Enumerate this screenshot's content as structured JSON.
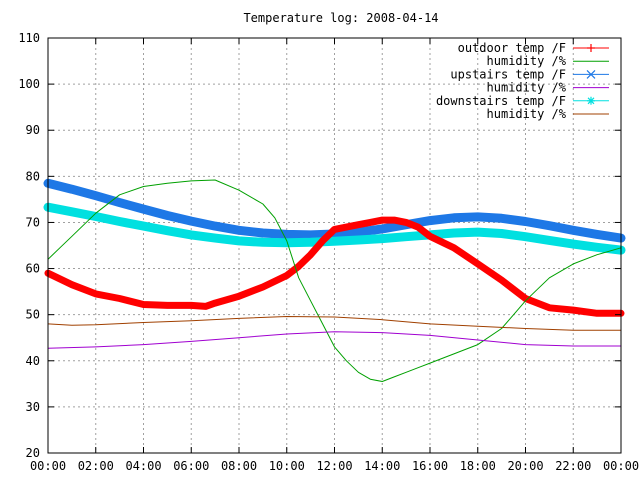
{
  "chart_data": {
    "type": "line",
    "title": "Temperature log: 2008-04-14",
    "xlabel": "",
    "ylabel": "",
    "xlim": [
      0,
      24
    ],
    "ylim": [
      20,
      110
    ],
    "grid": true,
    "legend_position": "top-right",
    "x_ticks": [
      "00:00",
      "02:00",
      "04:00",
      "06:00",
      "08:00",
      "10:00",
      "12:00",
      "14:00",
      "16:00",
      "18:00",
      "20:00",
      "22:00",
      "00:00"
    ],
    "y_ticks": [
      "20",
      "30",
      "40",
      "50",
      "60",
      "70",
      "80",
      "90",
      "100",
      "110"
    ],
    "series": [
      {
        "name": "outdoor temp /F",
        "color": "#ff0000",
        "marker": "plus",
        "points": [
          [
            0,
            59
          ],
          [
            1,
            56.5
          ],
          [
            2,
            54.5
          ],
          [
            3,
            53.5
          ],
          [
            4,
            52.2
          ],
          [
            5,
            52
          ],
          [
            6,
            52
          ],
          [
            6.6,
            51.8
          ],
          [
            7,
            52.5
          ],
          [
            8,
            54
          ],
          [
            9,
            56
          ],
          [
            10,
            58.5
          ],
          [
            10.5,
            60.5
          ],
          [
            11,
            63
          ],
          [
            11.5,
            66
          ],
          [
            12,
            68.5
          ],
          [
            12.5,
            69
          ],
          [
            13,
            69.5
          ],
          [
            13.5,
            70
          ],
          [
            14,
            70.5
          ],
          [
            14.5,
            70.5
          ],
          [
            15,
            70
          ],
          [
            15.5,
            69
          ],
          [
            16,
            67
          ],
          [
            17,
            64.5
          ],
          [
            18,
            61
          ],
          [
            19,
            57.5
          ],
          [
            20,
            53.5
          ],
          [
            21,
            51.5
          ],
          [
            22,
            51
          ],
          [
            23,
            50.3
          ],
          [
            24,
            50.3
          ]
        ]
      },
      {
        "name": "humidity /%",
        "color": "#00a000",
        "marker": "none",
        "points": [
          [
            0,
            62
          ],
          [
            0.5,
            64.5
          ],
          [
            1,
            67
          ],
          [
            2,
            72
          ],
          [
            3,
            76
          ],
          [
            4,
            77.8
          ],
          [
            5,
            78.5
          ],
          [
            6,
            79
          ],
          [
            7,
            79.2
          ],
          [
            8,
            77
          ],
          [
            9,
            74
          ],
          [
            9.5,
            71
          ],
          [
            10,
            66
          ],
          [
            10.5,
            58
          ],
          [
            11,
            53
          ],
          [
            11.5,
            48
          ],
          [
            12,
            43
          ],
          [
            12.5,
            40
          ],
          [
            13,
            37.5
          ],
          [
            13.5,
            36
          ],
          [
            14,
            35.5
          ],
          [
            14.5,
            36.5
          ],
          [
            15,
            37.5
          ],
          [
            15.5,
            38.5
          ],
          [
            16,
            39.5
          ],
          [
            16.5,
            40.5
          ],
          [
            17,
            41.5
          ],
          [
            18,
            43.5
          ],
          [
            19,
            47
          ],
          [
            19.5,
            50
          ],
          [
            20,
            53
          ],
          [
            20.5,
            55.5
          ],
          [
            21,
            58
          ],
          [
            22,
            61
          ],
          [
            23,
            63
          ],
          [
            24,
            64.5
          ]
        ]
      },
      {
        "name": "upstairs temp /F",
        "color": "#1e78e6",
        "marker": "cross",
        "points": [
          [
            0,
            78.5
          ],
          [
            1,
            77.2
          ],
          [
            2,
            75.8
          ],
          [
            3,
            74.3
          ],
          [
            4,
            72.9
          ],
          [
            5,
            71.5
          ],
          [
            6,
            70.3
          ],
          [
            7,
            69.2
          ],
          [
            8,
            68.3
          ],
          [
            9,
            67.7
          ],
          [
            10,
            67.4
          ],
          [
            11,
            67.3
          ],
          [
            12,
            67.5
          ],
          [
            13,
            67.9
          ],
          [
            14,
            68.6
          ],
          [
            15,
            69.5
          ],
          [
            16,
            70.4
          ],
          [
            17,
            71
          ],
          [
            18,
            71.2
          ],
          [
            19,
            70.9
          ],
          [
            20,
            70.2
          ],
          [
            21,
            69.3
          ],
          [
            22,
            68.3
          ],
          [
            23,
            67.4
          ],
          [
            24,
            66.6
          ]
        ]
      },
      {
        "name": "humidity /%",
        "color": "#a000d0",
        "marker": "none",
        "points": [
          [
            0,
            42.7
          ],
          [
            2,
            43
          ],
          [
            4,
            43.5
          ],
          [
            6,
            44.2
          ],
          [
            8,
            45
          ],
          [
            10,
            45.8
          ],
          [
            12,
            46.3
          ],
          [
            14,
            46.1
          ],
          [
            16,
            45.5
          ],
          [
            18,
            44.5
          ],
          [
            20,
            43.5
          ],
          [
            22,
            43.2
          ],
          [
            24,
            43.2
          ]
        ]
      },
      {
        "name": "downstairs temp /F",
        "color": "#00e0e0",
        "marker": "star",
        "points": [
          [
            0,
            73.3
          ],
          [
            1,
            72.3
          ],
          [
            2,
            71.3
          ],
          [
            3,
            70.2
          ],
          [
            4,
            69.2
          ],
          [
            5,
            68.2
          ],
          [
            6,
            67.3
          ],
          [
            7,
            66.6
          ],
          [
            8,
            66
          ],
          [
            9,
            65.7
          ],
          [
            10,
            65.6
          ],
          [
            11,
            65.7
          ],
          [
            12,
            65.9
          ],
          [
            13,
            66.2
          ],
          [
            14,
            66.5
          ],
          [
            15,
            66.9
          ],
          [
            16,
            67.3
          ],
          [
            17,
            67.7
          ],
          [
            18,
            67.9
          ],
          [
            19,
            67.6
          ],
          [
            20,
            66.9
          ],
          [
            21,
            66.1
          ],
          [
            22,
            65.3
          ],
          [
            23,
            64.6
          ],
          [
            24,
            64
          ]
        ]
      },
      {
        "name": "humidity /%",
        "color": "#a04000",
        "marker": "none",
        "points": [
          [
            0,
            48
          ],
          [
            1,
            47.7
          ],
          [
            2,
            47.8
          ],
          [
            4,
            48.3
          ],
          [
            6,
            48.7
          ],
          [
            8,
            49.2
          ],
          [
            10,
            49.6
          ],
          [
            12,
            49.5
          ],
          [
            14,
            48.9
          ],
          [
            16,
            48
          ],
          [
            18,
            47.5
          ],
          [
            20,
            47
          ],
          [
            22,
            46.6
          ],
          [
            24,
            46.6
          ]
        ]
      }
    ]
  }
}
